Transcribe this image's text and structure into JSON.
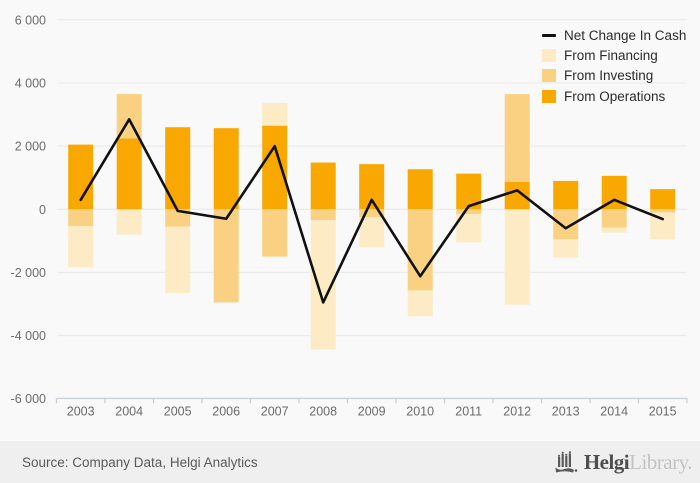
{
  "chart_data": {
    "type": "bar",
    "subtype": "stacked-bars-with-line-overlay",
    "title": "",
    "xlabel": "",
    "ylabel": "",
    "categories": [
      "2003",
      "2004",
      "2005",
      "2006",
      "2007",
      "2008",
      "2009",
      "2010",
      "2011",
      "2012",
      "2013",
      "2014",
      "2015"
    ],
    "series": [
      {
        "name": "From Operations",
        "key": "operations",
        "type": "bar",
        "color": "#F8A801",
        "values": [
          2050,
          2250,
          2600,
          2570,
          2650,
          1480,
          1430,
          1270,
          1130,
          870,
          900,
          1060,
          640
        ]
      },
      {
        "name": "From Investing",
        "key": "investing",
        "type": "bar",
        "color": "#FAD183",
        "values": [
          -530,
          1400,
          -550,
          -2950,
          -1500,
          -340,
          -250,
          -2570,
          -150,
          2780,
          -950,
          -580,
          -100
        ]
      },
      {
        "name": "From Financing",
        "key": "financing",
        "type": "bar",
        "color": "#FCEBC4",
        "values": [
          -1300,
          -800,
          -2100,
          0,
          720,
          -4100,
          -950,
          -820,
          -900,
          -3020,
          -580,
          -160,
          -850
        ]
      },
      {
        "name": "Net Change In Cash",
        "key": "net",
        "type": "line",
        "color": "#111111",
        "values": [
          300,
          2850,
          -50,
          -300,
          2000,
          -2950,
          300,
          -2120,
          100,
          600,
          -600,
          300,
          -310
        ]
      }
    ],
    "ylim": [
      -6000,
      6000
    ],
    "y_ticks": [
      {
        "value": 6000,
        "label": "6 000"
      },
      {
        "value": 4000,
        "label": "4 000"
      },
      {
        "value": 2000,
        "label": "2 000"
      },
      {
        "value": 0,
        "label": "0"
      },
      {
        "value": -2000,
        "label": "-2 000"
      },
      {
        "value": -4000,
        "label": "-4 000"
      },
      {
        "value": -6000,
        "label": "-6 000"
      }
    ],
    "grid": true,
    "legend_position": "top-right"
  },
  "legend": [
    {
      "key": "net",
      "label": "Net Change In Cash"
    },
    {
      "key": "financing",
      "label": "From Financing"
    },
    {
      "key": "investing",
      "label": "From Investing"
    },
    {
      "key": "operations",
      "label": "From Operations"
    }
  ],
  "footer": {
    "source": "Source: Company Data, Helgi Analytics",
    "logo": {
      "brand": "Helgi",
      "suffix": "Library."
    }
  }
}
